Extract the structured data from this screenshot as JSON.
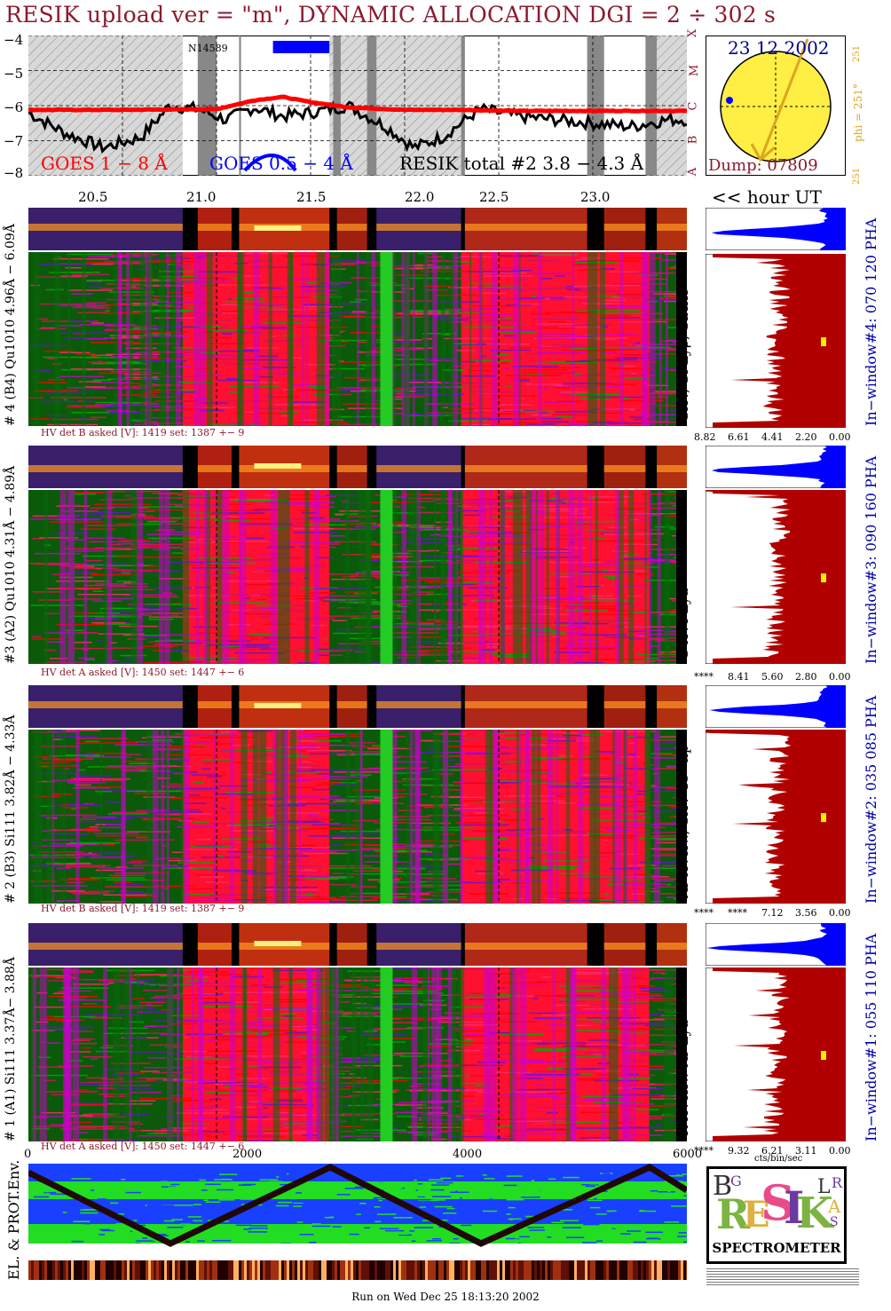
{
  "title": "RESIK upload ver = \"m\", DYNAMIC ALLOCATION  DGI =   2 ÷ 302 s",
  "footer": "Run on Wed Dec 25 18:13:20 2002",
  "lightcurve": {
    "ylabels": [
      "−4",
      "−5",
      "−6",
      "−7",
      "−8"
    ],
    "class_letters": [
      "X",
      "M",
      "C",
      "B",
      "A"
    ],
    "legend_goes18": "GOES 1 − 8 Å",
    "legend_goes054": "GOES 0.5 − 4 Å",
    "legend_resik": "RESIK total #2  3.8 − 4.3 Å",
    "noaa_label": "N14589",
    "colors": {
      "goes18": "#ff0000",
      "goes054": "#0000ff",
      "resik": "#000000"
    }
  },
  "time_axis": {
    "labels": [
      "20.5",
      "21.0",
      "21.5",
      "22.0",
      "22.5",
      "23.0"
    ],
    "unit_label": "<< hour UT"
  },
  "sun": {
    "date": "23 12 2002",
    "dump": "Dump: 07809",
    "phi_label": "phi = 251°",
    "phi_top": "251",
    "phi_bottom": "251"
  },
  "channels": [
    {
      "left_label": "# 4 (B4) Qu1010 4.96Å − 6.09Å",
      "line_label": "SXV, Si Lyβ, SiXIII",
      "window_label": "In−window#4:  070 120 PHA",
      "hv": "HV det B asked [V]:  1419 set:  1387 +−   9",
      "pha_ticks": [
        "8.82",
        "6.61",
        "4.41",
        "2.20",
        "0.00"
      ]
    },
    {
      "left_label": "#3 (A2) Qu1010  4.31Å − 4.89Å",
      "line_label": "S XVI Lya",
      "window_label": "In−window#3:  090 160 PHA",
      "hv": "HV det A asked [V]:  1450 set:  1447 +−   6",
      "pha_ticks": [
        "****",
        "8.41",
        "5.60",
        "2.80",
        "0.00"
      ]
    },
    {
      "left_label": "# 2 (B3) Si111  3.82Å − 4.33Å",
      "line_label": "Ar XVIIw,  SXV 1s−np",
      "window_label": "In−window#2:  035 085 PHA",
      "hv": "HV det B asked [V]:  1419 set:  1387 +−   9",
      "pha_ticks": [
        "****",
        "****",
        "7.12",
        "3.56",
        "0.00"
      ]
    },
    {
      "left_label": "# 1 (A1) Si111  3.37Å− 3.88Å",
      "line_label": "K XVIIIw  Ar Lya",
      "window_label": "In−window#1:  055 110 PHA",
      "hv": "HV det A asked [V]:  1450 set:  1447 +−   6",
      "pha_ticks": [
        "****",
        "9.32",
        "6.21",
        "3.11",
        "0.00"
      ]
    }
  ],
  "bin_axis": {
    "labels": [
      "0",
      "2000",
      "4000",
      "6000"
    ],
    "unit": "cts/bin/sec"
  },
  "env_label": "EL. & PROT.Env.",
  "logo": {
    "letters": [
      "R",
      "E",
      "S",
      "I",
      "K",
      "B",
      "G",
      "S",
      "L",
      "A",
      "R"
    ],
    "caption": "SPECTROMETER"
  },
  "chart_data": {
    "type": "line",
    "title": "RESIK upload ver = \"m\", DYNAMIC ALLOCATION  DGI =   2 ÷ 302 s",
    "xlabel": "hour UT",
    "ylabel": "",
    "xlim": [
      20.0,
      23.5
    ],
    "ylim": [
      -8,
      -4
    ],
    "x_ticks": [
      20.5,
      21.0,
      21.5,
      22.0,
      22.5,
      23.0
    ],
    "y_ticks": [
      -4,
      -5,
      -6,
      -7,
      -8
    ],
    "series": [
      {
        "name": "GOES 1 − 8 Å",
        "x": [
          20.0,
          20.5,
          21.0,
          21.2,
          21.35,
          21.5,
          21.7,
          22.0,
          22.3,
          22.6,
          23.0,
          23.5
        ],
        "values": [
          -6.12,
          -6.12,
          -6.1,
          -5.85,
          -5.75,
          -5.9,
          -6.05,
          -6.12,
          -6.12,
          -6.15,
          -6.15,
          -6.15
        ]
      },
      {
        "name": "RESIK total #2  3.8 − 4.3 Å",
        "x": [
          20.0,
          20.2,
          20.4,
          20.6,
          20.75,
          20.9,
          21.05,
          21.2,
          21.35,
          21.5,
          21.7,
          21.9,
          22.05,
          22.2,
          22.4,
          22.6,
          22.8,
          23.0,
          23.2,
          23.4
        ],
        "values": [
          -6.2,
          -6.8,
          -7.2,
          -6.9,
          -6.0,
          -6.1,
          -6.4,
          -6.05,
          -6.3,
          -6.2,
          -6.0,
          -6.6,
          -7.2,
          -6.9,
          -6.1,
          -6.3,
          -6.4,
          -6.5,
          -6.6,
          -6.4
        ]
      }
    ]
  }
}
